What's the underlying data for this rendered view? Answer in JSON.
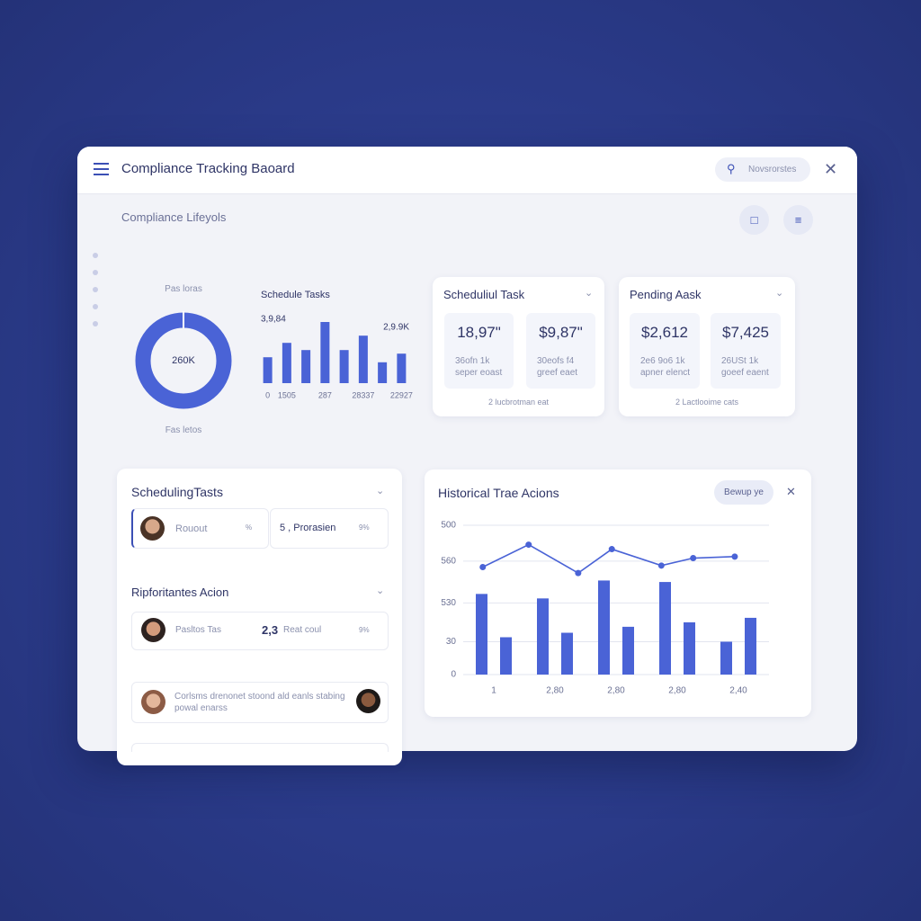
{
  "header": {
    "title": "Compliance Tracking Baoard",
    "search": "Novsrorstes"
  },
  "section_title": "Compliance Lifeyols",
  "donut": {
    "top_label": "Pas loras",
    "center_label": "260K",
    "bottom_label": "Fas letos"
  },
  "chart_data": [
    {
      "type": "bar",
      "title": "Schedule Tasks",
      "annotations": [
        "3,9,84",
        "2,9.9K"
      ],
      "categories": [
        "0",
        "1505",
        null,
        "287",
        null,
        "28337",
        null,
        "22927"
      ],
      "values": [
        36,
        56,
        46,
        85,
        46,
        66,
        29,
        41
      ],
      "color": "#4a63d6",
      "ylim": [
        0,
        100
      ]
    },
    {
      "type": "bar",
      "title": "Historical Trae Acions",
      "button": "Bewup ye",
      "categories": [
        "1",
        "2,80",
        "2,80",
        "2,80",
        "2,40"
      ],
      "series": [
        {
          "color": "#4a63d6",
          "values": [
            54,
            51,
            63,
            62,
            22
          ]
        },
        {
          "color": "#4a63d6",
          "values": [
            25,
            28,
            32,
            35,
            38
          ]
        }
      ],
      "line": {
        "color": "#4a63d6",
        "x": [
          0.32,
          1.07,
          1.88,
          2.43,
          3.24,
          3.76,
          4.44
        ],
        "values": [
          72,
          87,
          68,
          84,
          73,
          78,
          79
        ]
      },
      "xlim": [
        0,
        5
      ],
      "ylim": [
        0,
        100
      ],
      "yticks": [
        {
          "value": 100,
          "label": "500"
        },
        {
          "value": 76,
          "label": "560"
        },
        {
          "value": 48,
          "label": "530"
        },
        {
          "value": 22,
          "label": "30"
        },
        0
      ],
      "grid": true
    }
  ],
  "cards": [
    {
      "title": "Scheduliul Task",
      "stats": [
        {
          "value": "18,97\"",
          "line1": "36ofn 1k",
          "line2": "seper eoast"
        },
        {
          "value": "$9,87\"",
          "line1": "30eofs f4",
          "line2": "greef eaet"
        }
      ],
      "footer": "2 lucbrotman eat"
    },
    {
      "title": "Pending Aask",
      "stats": [
        {
          "value": "$2,612",
          "line1": "2e6 9o6 1k",
          "line2": "apner elenct"
        },
        {
          "value": "$7,425",
          "line1": "26USt 1k",
          "line2": "goeef eaent"
        }
      ],
      "footer": "2 Lactlooime cats"
    }
  ],
  "scheduling": {
    "title": "SchedulingTasts",
    "items": [
      {
        "label": "Rouout",
        "tag": "%"
      },
      {
        "label": "5 , Prorasien",
        "tag": "9%"
      }
    ]
  },
  "priority": {
    "title": "Ripforitantes Acion",
    "items": [
      {
        "label": "Pasltos Tas",
        "value": "2,3",
        "value_text": "Reat coul",
        "tag": "9%"
      }
    ]
  },
  "note": {
    "text": "Corlsms drenonet stoond ald eanls stabing powal enarss"
  }
}
